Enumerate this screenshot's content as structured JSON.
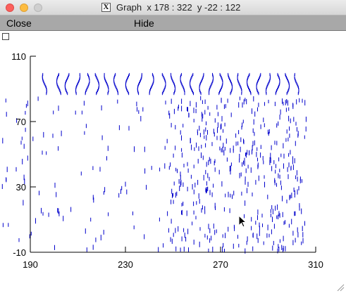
{
  "window": {
    "title": "Graph  x 178 : 322  y -22 : 122",
    "xlogo_glyph": "X"
  },
  "menu": {
    "close_label": "Close",
    "hide_label": "Hide"
  },
  "chart_data": {
    "type": "scatter",
    "title": "",
    "xlabel": "",
    "ylabel": "",
    "xlim": [
      190,
      310
    ],
    "ylim": [
      -10,
      110
    ],
    "x_ticks": [
      "190",
      "230",
      "270",
      "310"
    ],
    "y_ticks": [
      "110",
      "70",
      "30",
      "-10"
    ],
    "x_tick_values": [
      190,
      230,
      270,
      310
    ],
    "y_tick_values": [
      110,
      70,
      30,
      -10
    ],
    "grid": false,
    "marker": "short vertical tick (raster spike)",
    "color": "#0000cc",
    "raster_note": "spike raster: top band of dense wavy spike trains near y 88-100, sparse spikes on left rising to dense spikes from x ~250 to ~306"
  },
  "colors": {
    "spike": "#0000cc",
    "menubar": "#a8a8a8",
    "axis": "#000000"
  },
  "icons": {
    "cursor": "arrow-cursor-icon",
    "resize": "resize-grip-icon",
    "checkbox": "checkbox-icon"
  }
}
